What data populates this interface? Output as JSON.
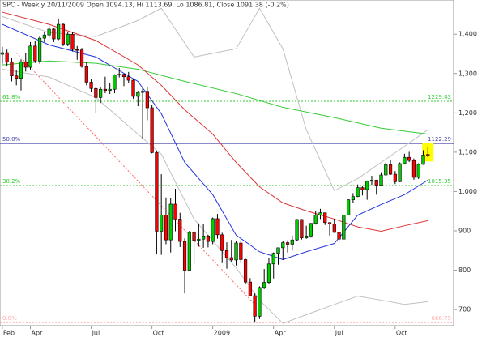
{
  "chart_data": {
    "type": "candlestick",
    "title": "SPC - Weekly 20/11/2009 Open 1094.13, Hi 1113.69, Lo 1086.81, Close 1091.38 (-0.2%)",
    "up_color": "#00cc00",
    "down_color": "#ff0000",
    "highlight_color": "#ffff00",
    "xlim": [
      1.5,
      98.5
    ],
    "ylim": [
      659,
      1487
    ],
    "xticks": [
      {
        "value": 2,
        "label": "Feb"
      },
      {
        "value": 8,
        "label": "Apr"
      },
      {
        "value": 21,
        "label": "Jul"
      },
      {
        "value": 34,
        "label": "Oct"
      },
      {
        "value": 47,
        "label": "2009"
      },
      {
        "value": 60,
        "label": "Apr"
      },
      {
        "value": 73,
        "label": "Jul"
      },
      {
        "value": 86,
        "label": "Oct"
      }
    ],
    "yticks": [
      700,
      800,
      900,
      {
        "value": 1000,
        "label": "1,000"
      },
      {
        "value": 1100,
        "label": "1,100"
      },
      {
        "value": 1200,
        "label": "1,200"
      },
      {
        "value": 1300,
        "label": "1,300"
      },
      {
        "value": 1400,
        "label": "1,400"
      }
    ],
    "x": [
      2,
      3,
      4,
      5,
      6,
      7,
      8,
      9,
      10,
      11,
      12,
      13,
      14,
      15,
      16,
      17,
      18,
      19,
      20,
      21,
      22,
      23,
      24,
      25,
      26,
      27,
      28,
      29,
      30,
      31,
      32,
      33,
      34,
      35,
      36,
      37,
      38,
      39,
      40,
      41,
      42,
      43,
      44,
      45,
      46,
      47,
      48,
      49,
      50,
      51,
      52,
      53,
      54,
      55,
      56,
      57,
      58,
      59,
      60,
      61,
      62,
      63,
      64,
      65,
      66,
      67,
      68,
      69,
      70,
      71,
      72,
      73,
      74,
      75,
      76,
      77,
      78,
      79,
      80,
      81,
      82,
      83,
      84,
      85,
      86,
      87,
      88,
      89,
      90,
      91,
      92,
      93
    ],
    "open": [
      1349,
      1353,
      1330,
      1294,
      1288,
      1330,
      1316,
      1370,
      1332,
      1390,
      1398,
      1413,
      1388,
      1425,
      1375,
      1400,
      1361,
      1360,
      1318,
      1278,
      1262,
      1239,
      1260,
      1257,
      1260,
      1296,
      1298,
      1292,
      1283,
      1242,
      1252,
      1255,
      1213,
      1099,
      899,
      940,
      877,
      968,
      930,
      873,
      800,
      896,
      876,
      879,
      887,
      873,
      931,
      890,
      850,
      832,
      826,
      869,
      827,
      770,
      735,
      683,
      756,
      769,
      816,
      843,
      857,
      870,
      866,
      877,
      929,
      882,
      887,
      919,
      940,
      946,
      921,
      918,
      896,
      879,
      940,
      979,
      987,
      1010,
      1005,
      1026,
      1029,
      1016,
      1042,
      1068,
      1044,
      1025,
      1071,
      1087,
      1079,
      1036,
      1069,
      1094.13
    ],
    "high": [
      1368,
      1361,
      1340,
      1310,
      1336,
      1352,
      1380,
      1382,
      1395,
      1405,
      1422,
      1416,
      1440,
      1428,
      1406,
      1406,
      1370,
      1365,
      1330,
      1285,
      1265,
      1266,
      1292,
      1277,
      1298,
      1314,
      1300,
      1304,
      1286,
      1256,
      1265,
      1265,
      1220,
      1102,
      1044,
      985,
      984,
      1007,
      946,
      881,
      900,
      900,
      919,
      918,
      890,
      934,
      943,
      895,
      871,
      877,
      875,
      876,
      829,
      780,
      741,
      759,
      803,
      832,
      845,
      857,
      875,
      876,
      888,
      930,
      930,
      913,
      920,
      951,
      956,
      946,
      922,
      931,
      898,
      941,
      980,
      996,
      1018,
      1013,
      1028,
      1040,
      1030,
      1049,
      1074,
      1080,
      1052,
      1074,
      1096,
      1101,
      1084,
      1072,
      1105,
      1113.69
    ],
    "low": [
      1325,
      1318,
      1280,
      1270,
      1257,
      1305,
      1310,
      1327,
      1325,
      1380,
      1390,
      1380,
      1385,
      1370,
      1370,
      1356,
      1335,
      1315,
      1270,
      1252,
      1200,
      1225,
      1250,
      1248,
      1250,
      1290,
      1268,
      1277,
      1236,
      1217,
      1133,
      1181,
      1097,
      840,
      839,
      866,
      845,
      899,
      859,
      741,
      798,
      815,
      860,
      857,
      858,
      866,
      880,
      818,
      804,
      821,
      812,
      818,
      764,
      734,
      666.79,
      676,
      752,
      766,
      779,
      814,
      826,
      845,
      850,
      875,
      878,
      880,
      883,
      916,
      930,
      915,
      888,
      895,
      869,
      880,
      940,
      970,
      986,
      990,
      979,
      1017,
      992,
      1015,
      1041,
      1042,
      1019,
      1024,
      1070,
      1075,
      1030,
      1032,
      1068,
      1086.81
    ],
    "close": [
      1353,
      1330,
      1294,
      1288,
      1330,
      1316,
      1370,
      1332,
      1390,
      1398,
      1413,
      1388,
      1425,
      1375,
      1400,
      1361,
      1360,
      1318,
      1278,
      1262,
      1239,
      1260,
      1257,
      1260,
      1296,
      1298,
      1292,
      1283,
      1242,
      1252,
      1255,
      1213,
      1099,
      899,
      940,
      877,
      968,
      930,
      873,
      800,
      896,
      876,
      879,
      887,
      873,
      931,
      890,
      850,
      832,
      826,
      869,
      827,
      770,
      735,
      683,
      756,
      769,
      816,
      843,
      857,
      870,
      866,
      877,
      929,
      882,
      887,
      919,
      940,
      946,
      921,
      918,
      896,
      879,
      940,
      979,
      987,
      1010,
      1005,
      1026,
      1029,
      1016,
      1042,
      1068,
      1044,
      1025,
      1071,
      1087,
      1079,
      1036,
      1069,
      1093,
      1091.38
    ],
    "overlays": [
      {
        "color": "#c0c0c0",
        "x": [
          2,
          12,
          22,
          31,
          36,
          43,
          52,
          57,
          62,
          67,
          73,
          78,
          83,
          88,
          93
        ],
        "values": [
          1445,
          1404,
          1394,
          1435,
          1466,
          1342,
          1363,
          1466,
          1363,
          1157,
          1002,
          1033,
          1074,
          1115,
          1157
        ]
      },
      {
        "color": "#c0c0c0",
        "x": [
          2,
          12,
          22,
          31,
          36,
          43,
          52,
          57,
          62,
          73,
          78,
          83,
          88,
          93
        ],
        "values": [
          1311,
          1291,
          1239,
          1146,
          1095,
          930,
          806,
          724,
          665,
          713,
          734,
          724,
          713,
          720
        ]
      },
      {
        "color": "#33cc33",
        "x": [
          2,
          12,
          22,
          31,
          41,
          52,
          62,
          73,
          83,
          93
        ],
        "values": [
          1322,
          1332,
          1326,
          1311,
          1280,
          1249,
          1214,
          1188,
          1161,
          1146
        ]
      },
      {
        "color": "#dd3333",
        "x": [
          2,
          12,
          22,
          31,
          36,
          41,
          47,
          52,
          57,
          62,
          67,
          73,
          78,
          83,
          88,
          93
        ],
        "values": [
          1456,
          1425,
          1384,
          1322,
          1270,
          1208,
          1146,
          1074,
          1012,
          971,
          951,
          930,
          910,
          899,
          913,
          926
        ]
      },
      {
        "color": "#2233dd",
        "x": [
          2,
          12,
          22,
          31,
          36,
          41,
          47,
          52,
          57,
          62,
          67,
          73,
          78,
          83,
          88,
          93
        ],
        "values": [
          1425,
          1373,
          1342,
          1280,
          1198,
          1074,
          992,
          889,
          847,
          827,
          847,
          868,
          940,
          967,
          992,
          1029
        ]
      }
    ],
    "trendline": {
      "color": "#ff6666",
      "x": [
        5,
        56
      ],
      "values": [
        1353,
        713
      ]
    },
    "fib_levels": [
      {
        "name": "61.8%",
        "value": 1229.43,
        "color": "#33cc33",
        "dashed": true
      },
      {
        "name": "50.0%",
        "value": 1122.29,
        "color": "#4444aa",
        "dashed": false
      },
      {
        "name": "38.2%",
        "value": 1015.35,
        "color": "#33cc33",
        "dashed": true
      },
      {
        "name": "0.0%",
        "value": 666.79,
        "color": "#ffaaaa",
        "dashed": true
      }
    ]
  }
}
